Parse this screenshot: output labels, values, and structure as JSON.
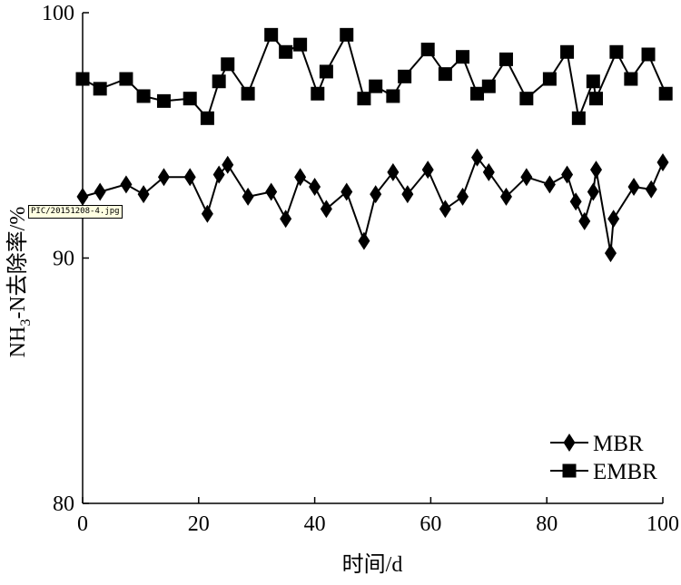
{
  "image_label": "PIC/20151208-4.jpg",
  "chart_data": {
    "type": "line",
    "xlabel": "时间/d",
    "ylabel": "NH3-N去除率/%",
    "xlim": [
      0,
      100
    ],
    "ylim": [
      80,
      100
    ],
    "xticks": [
      0,
      20,
      40,
      60,
      80,
      100
    ],
    "yticks": [
      80,
      90,
      100
    ],
    "xtick_labels": [
      "0",
      "20",
      "40",
      "60",
      "80",
      "100"
    ],
    "ytick_labels": [
      "80",
      "90",
      "100"
    ],
    "grid": false,
    "legend_position": "bottom-right",
    "series": [
      {
        "name": "MBR",
        "marker": "diamond",
        "x": [
          0,
          3,
          7.5,
          10.5,
          14,
          18.5,
          21.5,
          23.5,
          25,
          28.5,
          32.5,
          35,
          37.5,
          40,
          42,
          45.5,
          48.5,
          50.5,
          53.5,
          56,
          59.5,
          62.5,
          65.5,
          68,
          70,
          73,
          76.5,
          80.5,
          83.5,
          85,
          86.5,
          88,
          88.5,
          91,
          91.5,
          95,
          98,
          100
        ],
        "y": [
          92.5,
          92.7,
          93.0,
          92.6,
          93.3,
          93.3,
          91.8,
          93.4,
          93.8,
          92.5,
          92.7,
          91.6,
          93.3,
          92.9,
          92.0,
          92.7,
          90.7,
          92.6,
          93.5,
          92.6,
          93.6,
          92.0,
          92.5,
          94.1,
          93.5,
          92.5,
          93.3,
          93.0,
          93.4,
          92.3,
          91.5,
          92.7,
          93.6,
          90.2,
          91.6,
          92.9,
          92.8,
          93.9
        ]
      },
      {
        "name": "EMBR",
        "marker": "square",
        "x": [
          0,
          3,
          7.5,
          10.5,
          14,
          18.5,
          21.5,
          23.5,
          25,
          28.5,
          32.5,
          35,
          37.5,
          40.5,
          42,
          45.5,
          48.5,
          50.5,
          53.5,
          55.5,
          59.5,
          62.5,
          65.5,
          68,
          70,
          73,
          76.5,
          80.5,
          83.5,
          85.5,
          88,
          88.5,
          92,
          94.5,
          97.5,
          100.5
        ],
        "y": [
          97.3,
          96.9,
          97.3,
          96.6,
          96.4,
          96.5,
          95.7,
          97.2,
          97.9,
          96.7,
          99.1,
          98.4,
          98.7,
          96.7,
          97.6,
          99.1,
          96.5,
          97.0,
          96.6,
          97.4,
          98.5,
          97.5,
          98.2,
          96.7,
          97.0,
          98.1,
          96.5,
          97.3,
          98.4,
          95.7,
          97.2,
          96.5,
          98.4,
          97.3,
          98.3,
          96.7
        ]
      }
    ]
  }
}
